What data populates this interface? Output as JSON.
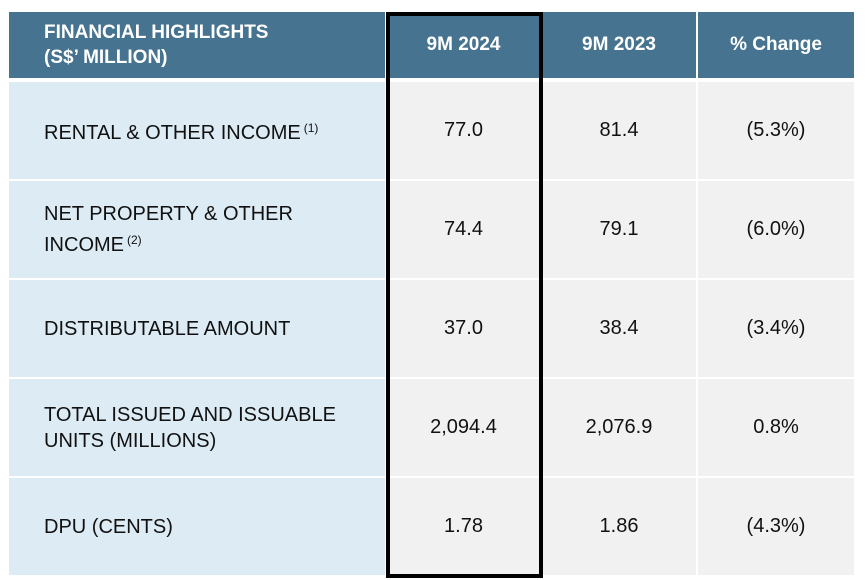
{
  "table": {
    "header": {
      "label_line1": "FINANCIAL HIGHLIGHTS",
      "label_line2": "(S$’ MILLION)",
      "col1": "9M 2024",
      "col2": "9M 2023",
      "col3": "% Change"
    },
    "rows": [
      {
        "label": "RENTAL & OTHER INCOME",
        "note": "(1)",
        "v2024": "77.0",
        "v2023": "81.4",
        "change": "(5.3%)"
      },
      {
        "label": "NET PROPERTY & OTHER INCOME",
        "note": "(2)",
        "v2024": "74.4",
        "v2023": "79.1",
        "change": "(6.0%)"
      },
      {
        "label": "DISTRIBUTABLE AMOUNT",
        "note": "",
        "v2024": "37.0",
        "v2023": "38.4",
        "change": "(3.4%)"
      },
      {
        "label": "TOTAL ISSUED AND ISSUABLE UNITS (MILLIONS)",
        "note": "",
        "v2024": "2,094.4",
        "v2023": "2,076.9",
        "change": "0.8%"
      },
      {
        "label": "DPU (CENTS)",
        "note": "",
        "v2024": "1.78",
        "v2023": "1.86",
        "change": "(4.3%)"
      }
    ]
  },
  "colors": {
    "header_bg": "#46738f",
    "label_bg": "#dcebf4",
    "cell_bg": "#f1f1f1",
    "highlight_border": "#000000"
  }
}
